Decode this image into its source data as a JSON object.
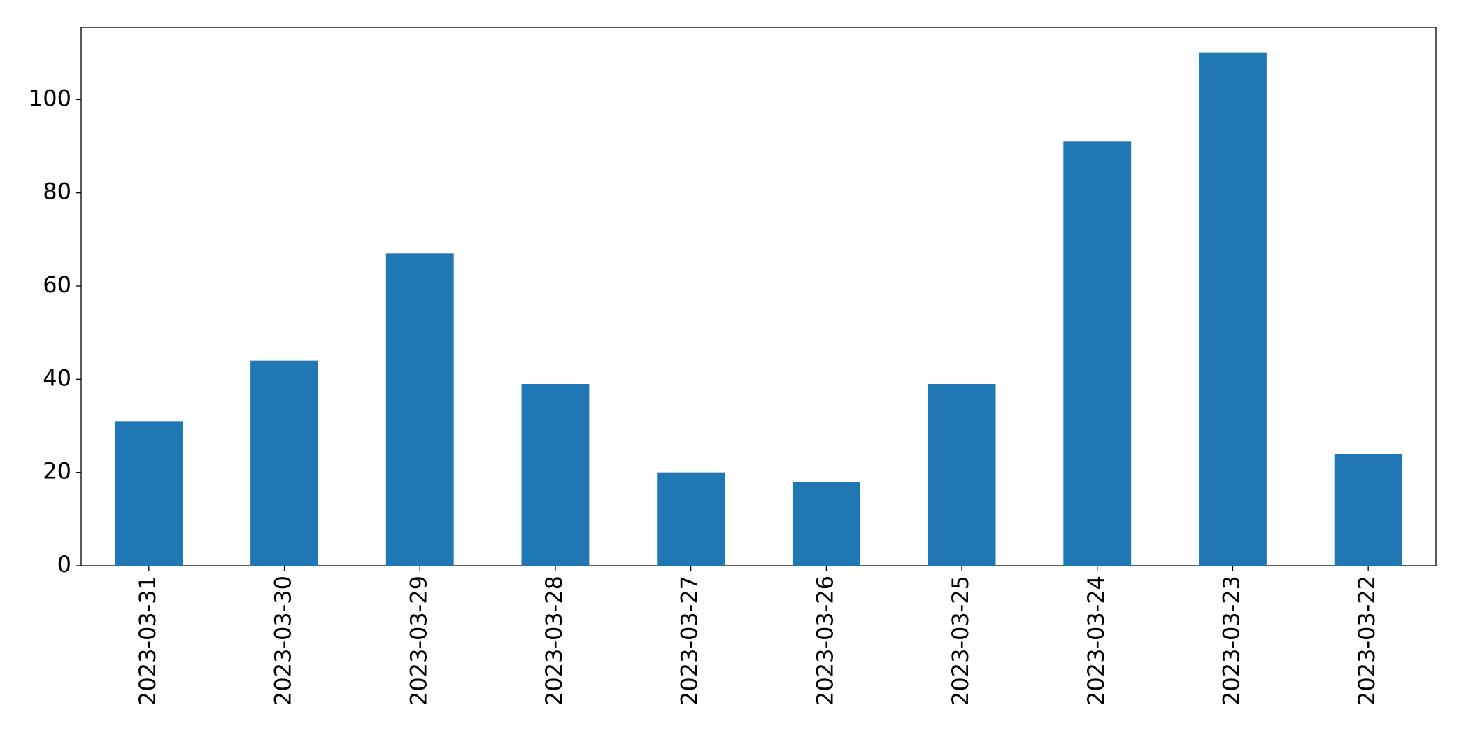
{
  "chart_data": {
    "type": "bar",
    "categories": [
      "2023-03-31",
      "2023-03-30",
      "2023-03-29",
      "2023-03-28",
      "2023-03-27",
      "2023-03-26",
      "2023-03-25",
      "2023-03-24",
      "2023-03-23",
      "2023-03-22"
    ],
    "values": [
      31,
      44,
      67,
      39,
      20,
      18,
      39,
      91,
      110,
      24
    ],
    "color": "#1f77b4",
    "ylim": [
      0,
      115.5
    ],
    "yticks": [
      0,
      20,
      40,
      60,
      80,
      100
    ],
    "grid": false
  }
}
